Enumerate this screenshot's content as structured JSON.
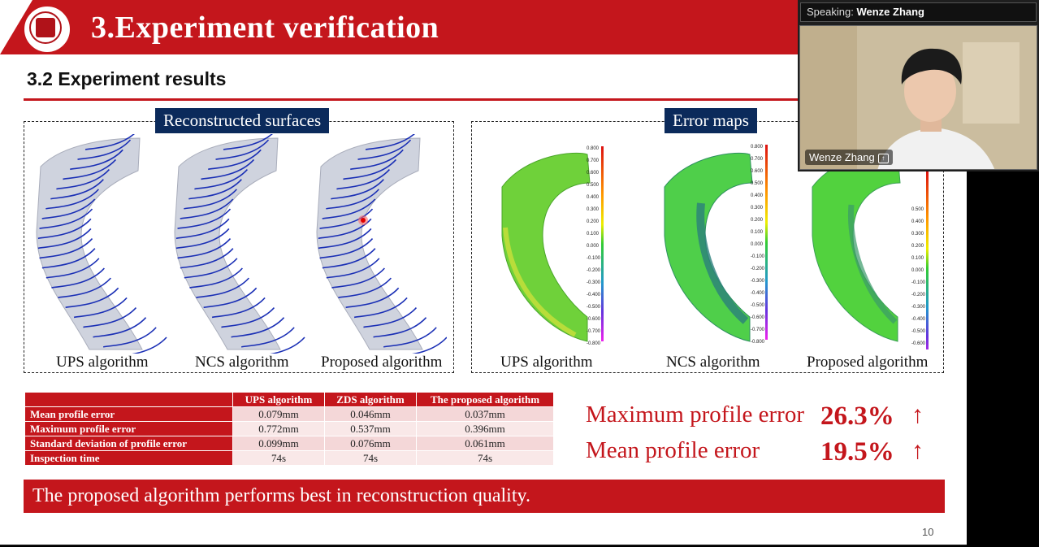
{
  "header": {
    "title": "3.Experiment verification"
  },
  "section": {
    "subtitle": "3.2 Experiment results"
  },
  "panels": {
    "left": {
      "tag": "Reconstructed surfaces",
      "captions": [
        "UPS algorithm",
        "NCS algorithm",
        "Proposed algorithm"
      ]
    },
    "right": {
      "tag": "Error maps",
      "captions": [
        "UPS algorithm",
        "NCS algorithm",
        "Proposed algorithm"
      ]
    }
  },
  "colorbar": {
    "ticks": [
      "0.800",
      "0.700",
      "0.600",
      "0.500",
      "0.400",
      "0.300",
      "0.200",
      "0.100",
      "0.000",
      "-0.100",
      "-0.200",
      "-0.300",
      "-0.400",
      "-0.500",
      "-0.600",
      "-0.700",
      "-0.800"
    ]
  },
  "table": {
    "headers": [
      "",
      "UPS algorithm",
      "ZDS algorithm",
      "The proposed algorithm"
    ],
    "rows": [
      {
        "label": "Mean profile error",
        "values": [
          "0.079mm",
          "0.046mm",
          "0.037mm"
        ]
      },
      {
        "label": "Maximum profile error",
        "values": [
          "0.772mm",
          "0.537mm",
          "0.396mm"
        ]
      },
      {
        "label": "Standard deviation of profile error",
        "values": [
          "0.099mm",
          "0.076mm",
          "0.061mm"
        ]
      },
      {
        "label": "Inspection time",
        "values": [
          "74s",
          "74s",
          "74s"
        ]
      }
    ]
  },
  "stats": [
    {
      "label": "Maximum profile error",
      "value": "26.3%",
      "arrow": "↑"
    },
    {
      "label": "Mean profile error",
      "value": "19.5%",
      "arrow": "↑"
    }
  ],
  "conclusion": "The proposed algorithm performs best in reconstruction quality.",
  "page_number": "10",
  "video": {
    "speaking_prefix": "Speaking:",
    "speaker": "Wenze Zhang",
    "name_tag": "Wenze Zhang"
  },
  "colors": {
    "accent": "#c4161c",
    "tag_bg": "#0b2a5b"
  }
}
